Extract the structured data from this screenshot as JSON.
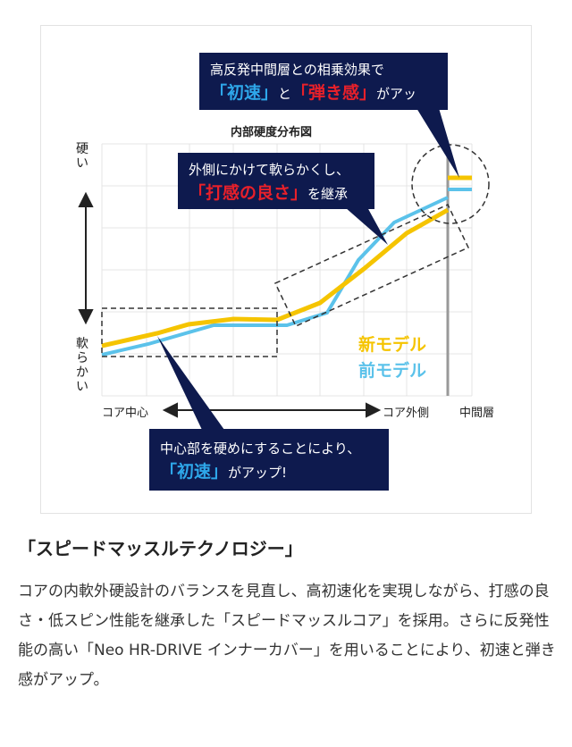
{
  "figure": {
    "chart_title": "内部硬度分布図",
    "y_axis": {
      "top": "硬い",
      "bottom": "軟らかい"
    },
    "x_axis": {
      "left": "コア中心",
      "right": "コア外側",
      "extra": "中間層"
    },
    "legend": {
      "new_model": "新モデル",
      "old_model": "前モデル"
    },
    "colors": {
      "new_model": "#f5c400",
      "old_model": "#5bc2ea",
      "callout_bg": "#0e1a4e",
      "highlight_blue": "#2ea7ea",
      "highlight_red": "#e8202a"
    },
    "callouts": {
      "top": {
        "line1": "高反発中間層との相乗効果で",
        "em1": "「初速」",
        "mid": "と",
        "em2": "「弾き感」",
        "tail": "がアップ。"
      },
      "middle": {
        "line1": "外側にかけて軟らかくし、",
        "em1": "「打感の良さ」",
        "tail": "を継承"
      },
      "bottom": {
        "line1": "中心部を硬めにすることにより、",
        "em1": "「初速」",
        "tail": "がアップ!"
      }
    }
  },
  "heading": "「スピードマッスルテクノロジー」",
  "body_text": "コアの内軟外硬設計のバランスを見直し、高初速化を実現しながら、打感の良さ・低スピン性能を継承した「スピードマッスルコア」を採用。さらに反発性能の高い「Neo HR-DRIVE インナーカバー」を用いることにより、初速と弾き感がアップ。"
}
